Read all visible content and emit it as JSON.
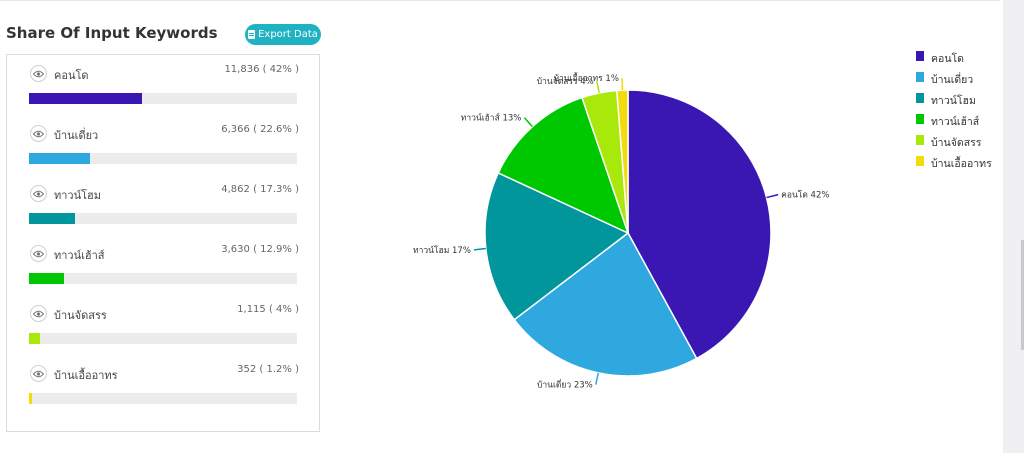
{
  "header": {
    "title": "Share Of Input Keywords",
    "export_label": "Export Data"
  },
  "keywords": [
    {
      "label": "คอนโด",
      "value": "11,836 ( 42% )",
      "fraction": 0.42,
      "color": "#3a17b3"
    },
    {
      "label": "บ้านเดี่ยว",
      "value": "6,366 ( 22.6% )",
      "fraction": 0.226,
      "color": "#2fa8e0"
    },
    {
      "label": "ทาวน์โฮม",
      "value": "4,862 ( 17.3% )",
      "fraction": 0.173,
      "color": "#00969b"
    },
    {
      "label": "ทาวน์เฮ้าส์",
      "value": "3,630 ( 12.9% )",
      "fraction": 0.129,
      "color": "#00c800"
    },
    {
      "label": "บ้านจัดสรร",
      "value": "1,115 ( 4% )",
      "fraction": 0.04,
      "color": "#a8e80a"
    },
    {
      "label": "บ้านเอื้ออาทร",
      "value": "352 ( 1.2% )",
      "fraction": 0.012,
      "color": "#f2dc0a"
    }
  ],
  "chart_data": {
    "type": "pie",
    "categories": [
      "คอนโด",
      "บ้านเดี่ยว",
      "ทาวน์โฮม",
      "ทาวน์เฮ้าส์",
      "บ้านจัดสรร",
      "บ้านเอื้ออาทร"
    ],
    "values": [
      11836,
      6366,
      4862,
      3630,
      1115,
      352
    ],
    "percent_labels": [
      "คอนโด 42%",
      "บ้านเดี่ยว 23%",
      "ทาวน์โฮม 17%",
      "ทาวน์เฮ้าส์ 13%",
      "บ้านจัดสรร 4%",
      "บ้านเอื้ออาทร 1%"
    ],
    "colors": [
      "#3a17b3",
      "#2fa8e0",
      "#00969b",
      "#00c800",
      "#a8e80a",
      "#f2dc0a"
    ],
    "legend_position": "top-right"
  }
}
